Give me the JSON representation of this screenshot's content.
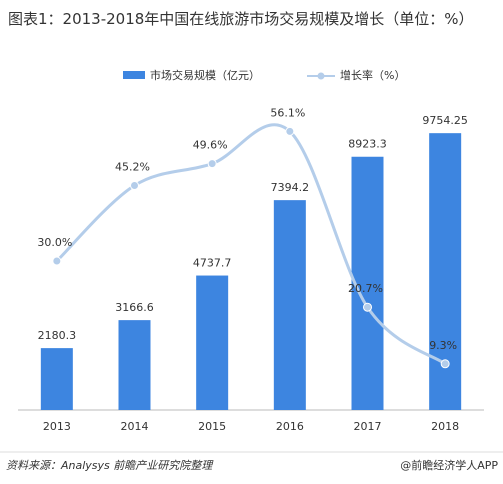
{
  "chart_data": {
    "type": "bar-line",
    "title": "图表1：2013-2018年中国在线旅游市场交易规模及增长（单位：%）",
    "categories": [
      "2013",
      "2014",
      "2015",
      "2016",
      "2017",
      "2018"
    ],
    "series": [
      {
        "name": "市场交易规模（亿元）",
        "type": "bar",
        "color": "#3d85e0",
        "values": [
          2180.3,
          3166.6,
          4737.7,
          7394.2,
          8923.3,
          9754.25
        ]
      },
      {
        "name": "增长率（%）",
        "type": "line",
        "axis": "y2",
        "color": "#b4cdea",
        "values": [
          30.0,
          45.2,
          49.6,
          56.1,
          20.7,
          9.3
        ],
        "value_labels": [
          "30.0%",
          "45.2%",
          "49.6%",
          "56.1%",
          "20.7%",
          "9.3%"
        ]
      }
    ],
    "ylim": [
      0,
      10500
    ],
    "y2lim": [
      0,
      60
    ],
    "source": "资料来源：Analysys 前瞻产业研究院整理",
    "watermark": "@前瞻经济学人APP"
  }
}
